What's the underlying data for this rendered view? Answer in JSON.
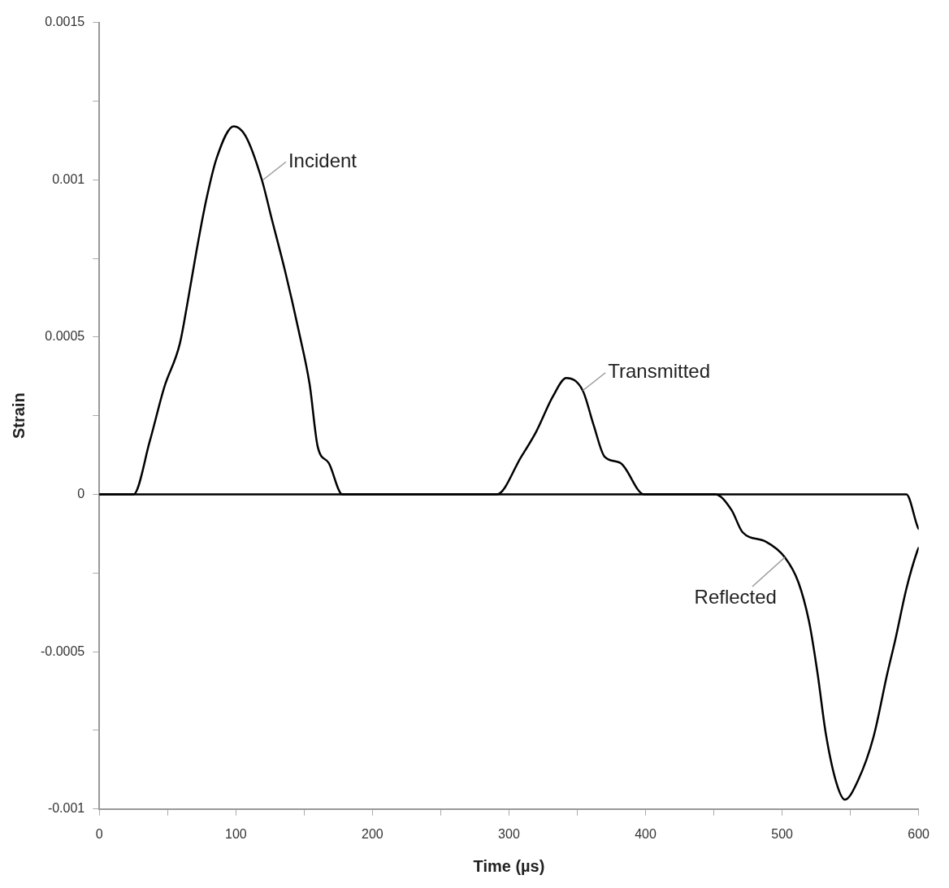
{
  "chart_data": {
    "type": "line",
    "xlabel": "Time (µs)",
    "ylabel": "Strain",
    "xlim": [
      0,
      600
    ],
    "ylim": [
      -0.001,
      0.0015
    ],
    "xticks": [
      0,
      {
        "value": 50,
        "label": null
      },
      100,
      {
        "value": 150,
        "label": null
      },
      200,
      {
        "value": 250,
        "label": null
      },
      300,
      {
        "value": 350,
        "label": null
      },
      400,
      {
        "value": 450,
        "label": null
      },
      500,
      {
        "value": 550,
        "label": null
      },
      600
    ],
    "yticks": [
      -0.001,
      {
        "value": -0.00075,
        "label": null
      },
      -0.0005,
      {
        "value": -0.00025,
        "label": null
      },
      0,
      {
        "value": 0.00025,
        "label": null
      },
      0.0005,
      {
        "value": 0.00075,
        "label": null
      },
      0.001,
      {
        "value": 0.00125,
        "label": null
      },
      0.0015
    ],
    "grid": false,
    "legend": false,
    "marker": "none",
    "line_style": "solid",
    "series": [
      {
        "color": "#000000",
        "x": [
          0,
          14,
          25,
          37,
          47.5,
          59,
          65,
          71,
          78,
          86,
          98.5,
          107,
          119,
          126,
          136,
          146,
          154,
          160,
          168,
          178,
          190,
          300,
          451,
          463,
          471,
          488,
          502,
          512,
          520,
          526,
          532,
          540,
          546,
          555.5,
          567,
          577,
          583,
          591,
          599,
          600
        ],
        "values": [
          0,
          0,
          0,
          0.00017,
          0.00034,
          0.00048,
          0.00062,
          0.00077,
          0.00093,
          0.00107,
          0.00117,
          0.00114,
          0.001,
          0.00088,
          0.00071,
          0.00052,
          0.00035,
          0.00015,
          0.0001,
          0,
          0,
          0,
          0,
          -5e-05,
          -0.00012,
          -0.00015,
          -0.0002,
          -0.00028,
          -0.00041,
          -0.00057,
          -0.00076,
          -0.00092,
          -0.00097,
          -0.00091,
          -0.00077,
          -0.00057,
          -0.00046,
          -0.0003,
          -0.00018,
          -0.00017
        ]
      },
      {
        "color": "#000000",
        "x": [
          0,
          150,
          291,
          309,
          320,
          332,
          342,
          354,
          362,
          370,
          381.6,
          399,
          500,
          579,
          591,
          599,
          600
        ],
        "values": [
          0,
          0,
          0,
          0.00012,
          0.0002,
          0.00031,
          0.00037,
          0.00033,
          0.00022,
          0.00012,
          0.0001,
          0,
          0,
          0,
          0,
          -0.0001,
          -0.00011
        ]
      }
    ],
    "annotations": [
      {
        "text": "Incident",
        "x": 120,
        "y": 0.001
      },
      {
        "text": "Transmitted",
        "x": 354,
        "y": 0.00033
      },
      {
        "text": "Reflected",
        "x": 502,
        "y": -0.0002
      }
    ]
  }
}
